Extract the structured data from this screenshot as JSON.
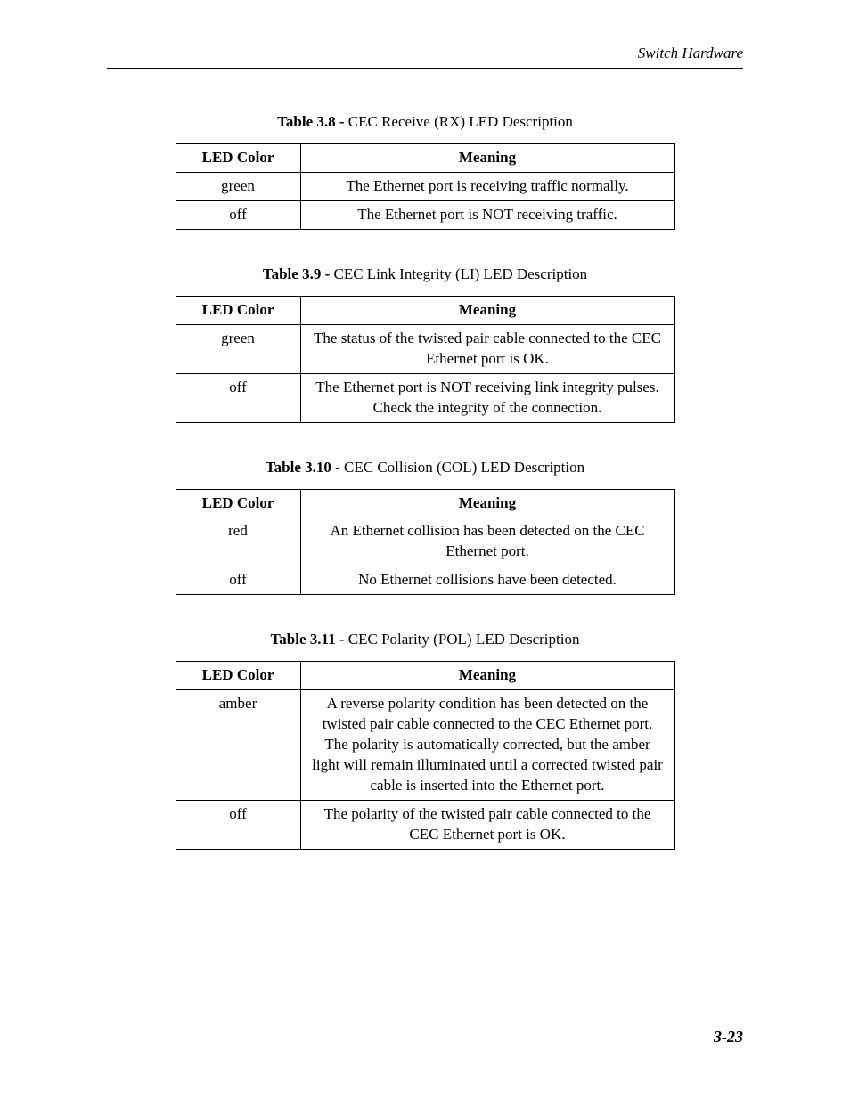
{
  "header": {
    "running_title": "Switch Hardware"
  },
  "footer": {
    "page_number": "3-23"
  },
  "tables": [
    {
      "caption_prefix": "Table 3.8 - ",
      "caption_title": "CEC Receive (RX) LED Description",
      "columns": [
        "LED Color",
        "Meaning"
      ],
      "rows": [
        {
          "color": "green",
          "meaning": "The Ethernet port is receiving traffic normally."
        },
        {
          "color": "off",
          "meaning": "The Ethernet port is NOT receiving traffic."
        }
      ]
    },
    {
      "caption_prefix": "Table 3.9 - ",
      "caption_title": "CEC Link Integrity (LI) LED Description",
      "columns": [
        "LED Color",
        "Meaning"
      ],
      "rows": [
        {
          "color": "green",
          "meaning": "The status of the twisted pair cable connected to the CEC Ethernet port is OK."
        },
        {
          "color": "off",
          "meaning": "The Ethernet port is NOT receiving link integrity pulses. Check the integrity of the connection."
        }
      ]
    },
    {
      "caption_prefix": "Table 3.10 - ",
      "caption_title": "CEC Collision (COL) LED Description",
      "columns": [
        "LED Color",
        "Meaning"
      ],
      "rows": [
        {
          "color": "red",
          "meaning": "An Ethernet collision has been detected on the CEC Ethernet port."
        },
        {
          "color": "off",
          "meaning": "No Ethernet collisions have been detected."
        }
      ]
    },
    {
      "caption_prefix": "Table 3.11 - ",
      "caption_title": "CEC Polarity (POL) LED Description",
      "columns": [
        "LED Color",
        "Meaning"
      ],
      "rows": [
        {
          "color": "amber",
          "meaning": "A reverse polarity condition has been detected on the twisted pair cable connected to the CEC Ethernet port. The polarity is automatically corrected, but the amber light will remain illuminated until a corrected twisted pair cable is inserted into the Ethernet port."
        },
        {
          "color": "off",
          "meaning": "The polarity of the twisted pair cable connected to the CEC Ethernet port is OK."
        }
      ]
    }
  ]
}
